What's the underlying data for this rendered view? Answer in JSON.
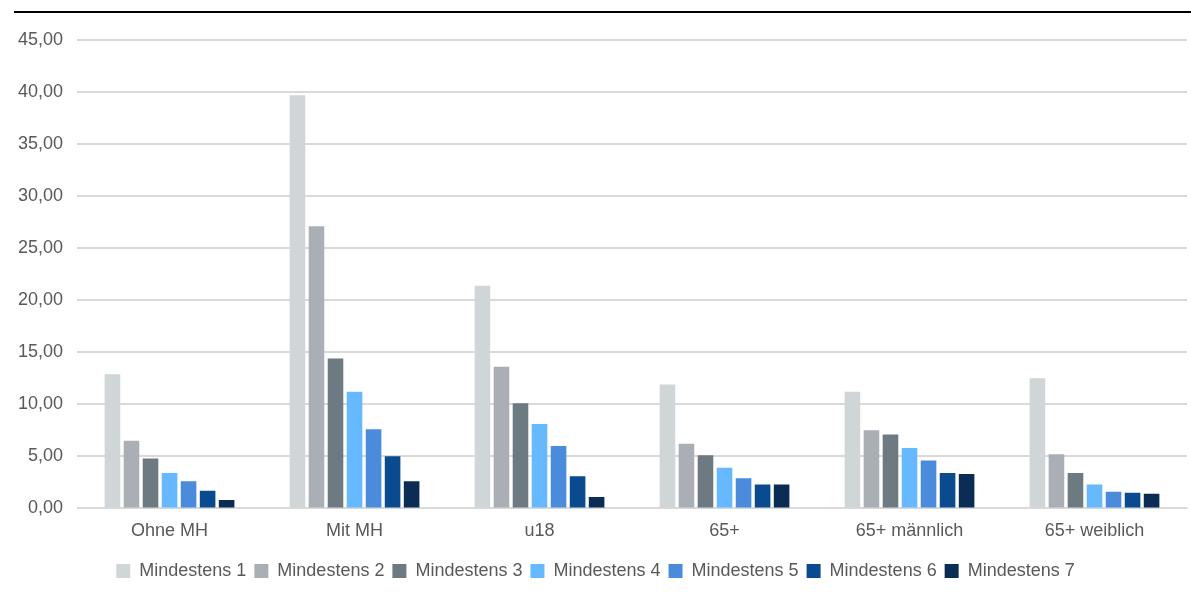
{
  "chart_data": {
    "type": "bar",
    "categories": [
      "Ohne MH",
      "Mit MH",
      "u18",
      "65+",
      "65+ männlich",
      "65+ weiblich"
    ],
    "series": [
      {
        "name": "Mindestens 1",
        "color": "#d0d5d8",
        "values": [
          12.9,
          39.7,
          21.4,
          11.9,
          11.2,
          12.5
        ]
      },
      {
        "name": "Mindestens 2",
        "color": "#a9afb4",
        "values": [
          6.5,
          27.1,
          13.6,
          6.2,
          7.5,
          5.2
        ]
      },
      {
        "name": "Mindestens 3",
        "color": "#6d7a82",
        "values": [
          4.8,
          14.4,
          10.1,
          5.1,
          7.1,
          3.4
        ]
      },
      {
        "name": "Mindestens 4",
        "color": "#66b8ff",
        "values": [
          3.4,
          11.2,
          8.1,
          3.9,
          5.8,
          2.3
        ]
      },
      {
        "name": "Mindestens 5",
        "color": "#4a8bdb",
        "values": [
          2.6,
          7.6,
          6.0,
          2.9,
          4.6,
          1.6
        ]
      },
      {
        "name": "Mindestens 6",
        "color": "#0a4a8f",
        "values": [
          1.7,
          5.0,
          3.1,
          2.3,
          3.4,
          1.5
        ]
      },
      {
        "name": "Mindestens 7",
        "color": "#0b2c55",
        "values": [
          0.8,
          2.6,
          1.1,
          2.3,
          3.3,
          1.4
        ]
      }
    ],
    "ylim": [
      0,
      45
    ],
    "yticks": [
      {
        "value": 0,
        "label": "0,00"
      },
      {
        "value": 5,
        "label": "5,00"
      },
      {
        "value": 10,
        "label": "10,00"
      },
      {
        "value": 15,
        "label": "15,00"
      },
      {
        "value": 20,
        "label": "20,00"
      },
      {
        "value": 25,
        "label": "25,00"
      },
      {
        "value": 30,
        "label": "30,00"
      },
      {
        "value": 35,
        "label": "35,00"
      },
      {
        "value": 40,
        "label": "40,00"
      },
      {
        "value": 45,
        "label": "45,00"
      }
    ],
    "grid": "y",
    "legend": "bottom"
  }
}
